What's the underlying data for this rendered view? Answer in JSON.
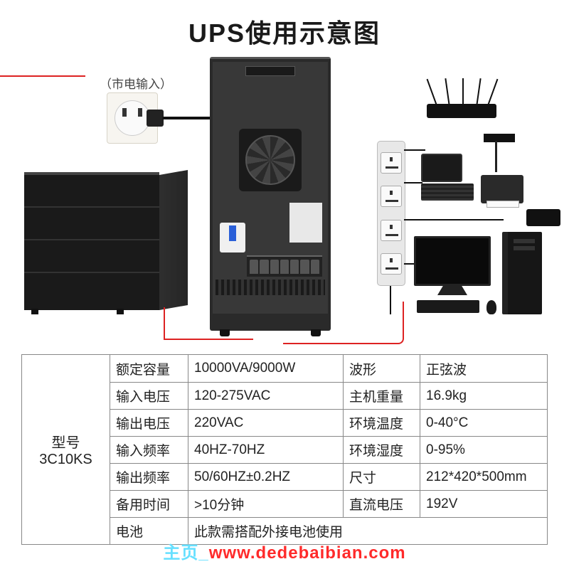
{
  "title": "UPS使用示意图",
  "input_label": "（市电输入）",
  "model": {
    "label": "型号",
    "value": "3C10KS"
  },
  "specs": [
    {
      "l1": "额定容量",
      "v1": "10000VA/9000W",
      "l2": "波形",
      "v2": "正弦波"
    },
    {
      "l1": "输入电压",
      "v1": "120-275VAC",
      "l2": "主机重量",
      "v2": "16.9kg"
    },
    {
      "l1": "输出电压",
      "v1": "220VAC",
      "l2": "环境温度",
      "v2": "0-40°C"
    },
    {
      "l1": "输入频率",
      "v1": "40HZ-70HZ",
      "l2": "环境湿度",
      "v2": "0-95%"
    },
    {
      "l1": "输出频率",
      "v1": "50/60HZ±0.2HZ",
      "l2": "尺寸",
      "v2": "212*420*500mm"
    },
    {
      "l1": "备用时间",
      "v1": ">10分钟",
      "l2": "直流电压",
      "v2": "192V"
    }
  ],
  "battery_row": {
    "label": "电池",
    "value": "此款需搭配外接电池使用"
  },
  "watermark": {
    "pre": "主页_",
    "url": "www.dedebaibian.com"
  },
  "colors": {
    "wire": "#d22222",
    "text": "#222222",
    "border": "#888888",
    "device": "#1a1a1a",
    "bg": "#ffffff"
  }
}
